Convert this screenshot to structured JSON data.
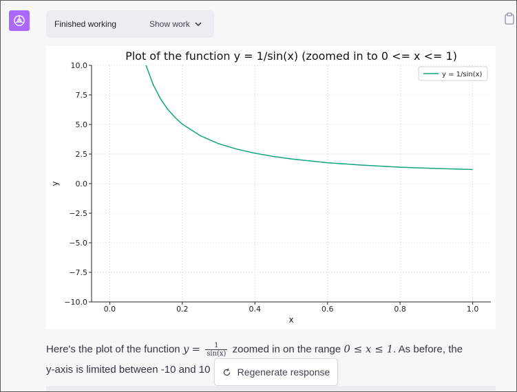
{
  "status": {
    "label": "Finished working",
    "show_work": "Show work"
  },
  "message": {
    "prefix": "Here's the plot of the function ",
    "math_y": "y",
    "math_eq": "=",
    "frac_num": "1",
    "frac_den": "sin(x)",
    "mid": " zoomed in on the range ",
    "range_expr": "0 ≤ x ≤ 1",
    "suffix": ". As before, the",
    "line2": "y-axis is limited between -10 and 10"
  },
  "regenerate": {
    "label": "Regenerate response"
  },
  "icons": {
    "avatar": "openai-logo-icon",
    "chevron": "chevron-down-icon",
    "clipboard": "clipboard-icon",
    "regenerate": "refresh-icon"
  },
  "colors": {
    "avatar_bg": "#ab68ff",
    "series": "#10a37f"
  },
  "chart_data": {
    "type": "line",
    "title": "Plot of the function y = 1/sin(x) (zoomed in to 0 <= x <= 1)",
    "xlabel": "x",
    "ylabel": "y",
    "xlim": [
      -0.05,
      1.05
    ],
    "ylim": [
      -10,
      10
    ],
    "x_ticks": [
      0.0,
      0.2,
      0.4,
      0.6,
      0.8,
      1.0
    ],
    "x_tick_labels": [
      "0.0",
      "0.2",
      "0.4",
      "0.6",
      "0.8",
      "1.0"
    ],
    "y_ticks": [
      10,
      7.5,
      5,
      2.5,
      0,
      -2.5,
      -5,
      -7.5,
      -10
    ],
    "y_tick_labels": [
      "10.0",
      "7.5",
      "5.0",
      "2.5",
      "0.0",
      "−2.5",
      "−5.0",
      "−7.5",
      "−10.0"
    ],
    "grid": true,
    "legend_position": "top-right",
    "series": [
      {
        "name": "y = 1/sin(x)",
        "x": [
          0.1,
          0.12,
          0.14,
          0.16,
          0.18,
          0.2,
          0.25,
          0.3,
          0.35,
          0.4,
          0.45,
          0.5,
          0.6,
          0.7,
          0.8,
          0.9,
          1.0
        ],
        "y": [
          10.02,
          8.35,
          7.17,
          6.28,
          5.59,
          5.03,
          4.04,
          3.38,
          2.92,
          2.57,
          2.3,
          2.09,
          1.77,
          1.55,
          1.39,
          1.28,
          1.19
        ]
      }
    ]
  }
}
